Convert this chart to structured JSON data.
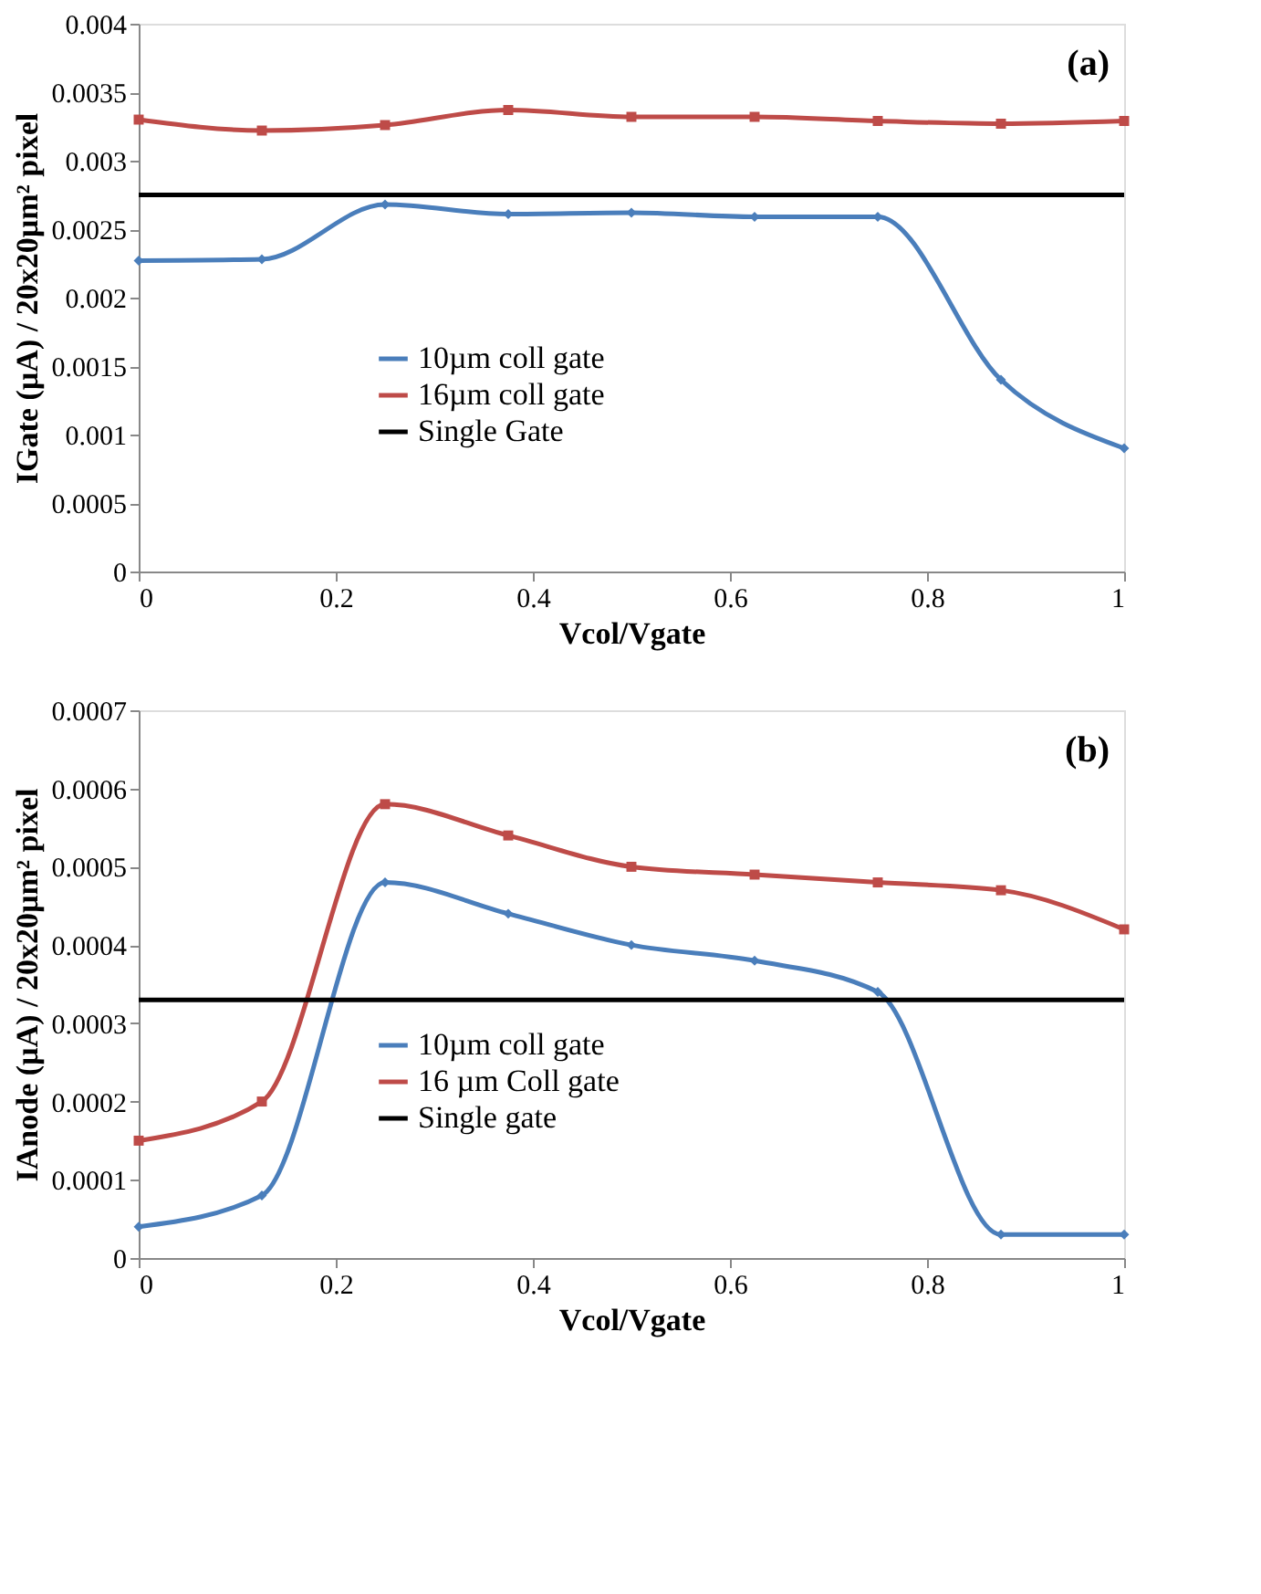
{
  "chart_data": [
    {
      "type": "line",
      "annotations": [
        "(a)"
      ],
      "xlabel": "Vcol/Vgate",
      "ylabel": "IGate (µA) / 20x20µm² pixel",
      "x": [
        0,
        0.125,
        0.25,
        0.375,
        0.5,
        0.625,
        0.75,
        0.875,
        1
      ],
      "series": [
        {
          "name": "10µm coll gate",
          "color": "#4a7ebb",
          "marker": "diamond",
          "values": [
            0.00227,
            0.00228,
            0.00268,
            0.00261,
            0.00262,
            0.00259,
            0.00259,
            0.0014,
            0.0009
          ]
        },
        {
          "name": "16µm coll gate",
          "color": "#be4b48",
          "marker": "square",
          "values": [
            0.0033,
            0.00322,
            0.00326,
            0.00337,
            0.00332,
            0.00332,
            0.00329,
            0.00327,
            0.00329
          ]
        }
      ],
      "ref_lines": [
        {
          "axis": "y",
          "value": 0.00275,
          "label": "Single Gate",
          "color": "#000000"
        }
      ],
      "xlim": [
        0,
        1
      ],
      "xticks": [
        0,
        0.2,
        0.4,
        0.6,
        0.8,
        1
      ],
      "ylim": [
        0,
        0.004
      ],
      "yticks": [
        0,
        0.0005,
        0.001,
        0.0015,
        0.002,
        0.0025,
        0.003,
        0.0035,
        0.004
      ],
      "grid": false,
      "legend": "left"
    },
    {
      "type": "line",
      "annotations": [
        "(b)"
      ],
      "xlabel": "Vcol/Vgate",
      "ylabel": "IAnode (µA) / 20x20µm² pixel",
      "x": [
        0,
        0.125,
        0.25,
        0.375,
        0.5,
        0.625,
        0.75,
        0.875,
        1
      ],
      "series": [
        {
          "name": "10µm coll gate",
          "color": "#4a7ebb",
          "marker": "diamond",
          "values": [
            4e-05,
            8e-05,
            0.00048,
            0.00044,
            0.0004,
            0.00038,
            0.00034,
            3e-05,
            3e-05
          ]
        },
        {
          "name": "16 µm Coll gate",
          "color": "#be4b48",
          "marker": "square",
          "values": [
            0.00015,
            0.0002,
            0.00058,
            0.00054,
            0.0005,
            0.00049,
            0.00048,
            0.00047,
            0.00042
          ]
        }
      ],
      "ref_lines": [
        {
          "axis": "y",
          "value": 0.00033,
          "label": "Single gate",
          "color": "#000000"
        }
      ],
      "xlim": [
        0,
        1
      ],
      "xticks": [
        0,
        0.2,
        0.4,
        0.6,
        0.8,
        1
      ],
      "ylim": [
        0,
        0.0007
      ],
      "yticks": [
        0,
        0.0001,
        0.0002,
        0.0003,
        0.0004,
        0.0005,
        0.0006,
        0.0007
      ],
      "grid": false,
      "legend": "left"
    }
  ]
}
